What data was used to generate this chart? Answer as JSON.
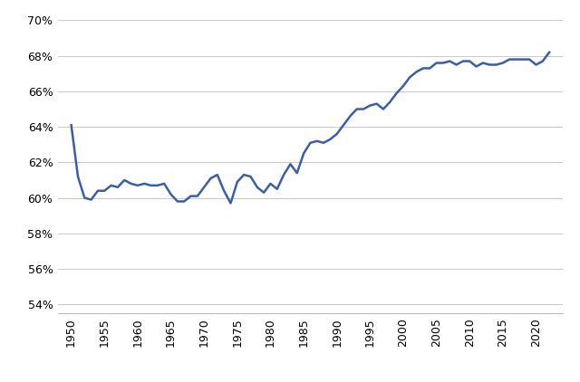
{
  "line_color": "#3B5EA6",
  "background_color": "#ffffff",
  "grid_color": "#c8c8c8",
  "ylim": [
    0.535,
    0.705
  ],
  "yticks": [
    0.54,
    0.56,
    0.58,
    0.6,
    0.62,
    0.64,
    0.66,
    0.68,
    0.7
  ],
  "xticks": [
    1950,
    1955,
    1960,
    1965,
    1970,
    1975,
    1980,
    1985,
    1990,
    1995,
    2000,
    2005,
    2010,
    2015,
    2020
  ],
  "years": [
    1950,
    1951,
    1952,
    1953,
    1954,
    1955,
    1956,
    1957,
    1958,
    1959,
    1960,
    1961,
    1962,
    1963,
    1964,
    1965,
    1966,
    1967,
    1968,
    1969,
    1970,
    1971,
    1972,
    1973,
    1974,
    1975,
    1976,
    1977,
    1978,
    1979,
    1980,
    1981,
    1982,
    1983,
    1984,
    1985,
    1986,
    1987,
    1988,
    1989,
    1990,
    1991,
    1992,
    1993,
    1994,
    1995,
    1996,
    1997,
    1998,
    1999,
    2000,
    2001,
    2002,
    2003,
    2004,
    2005,
    2006,
    2007,
    2008,
    2009,
    2010,
    2011,
    2012,
    2013,
    2014,
    2015,
    2016,
    2017,
    2018,
    2019,
    2020,
    2021,
    2022
  ],
  "values": [
    0.641,
    0.612,
    0.6,
    0.599,
    0.604,
    0.604,
    0.607,
    0.606,
    0.61,
    0.608,
    0.607,
    0.608,
    0.607,
    0.607,
    0.608,
    0.602,
    0.598,
    0.598,
    0.601,
    0.601,
    0.606,
    0.611,
    0.613,
    0.604,
    0.597,
    0.609,
    0.613,
    0.612,
    0.606,
    0.603,
    0.608,
    0.605,
    0.613,
    0.619,
    0.614,
    0.625,
    0.631,
    0.632,
    0.631,
    0.633,
    0.636,
    0.641,
    0.646,
    0.65,
    0.65,
    0.652,
    0.653,
    0.65,
    0.654,
    0.659,
    0.663,
    0.668,
    0.671,
    0.673,
    0.673,
    0.676,
    0.676,
    0.677,
    0.675,
    0.677,
    0.677,
    0.674,
    0.676,
    0.675,
    0.675,
    0.676,
    0.678,
    0.678,
    0.678,
    0.678,
    0.675,
    0.677,
    0.682
  ]
}
